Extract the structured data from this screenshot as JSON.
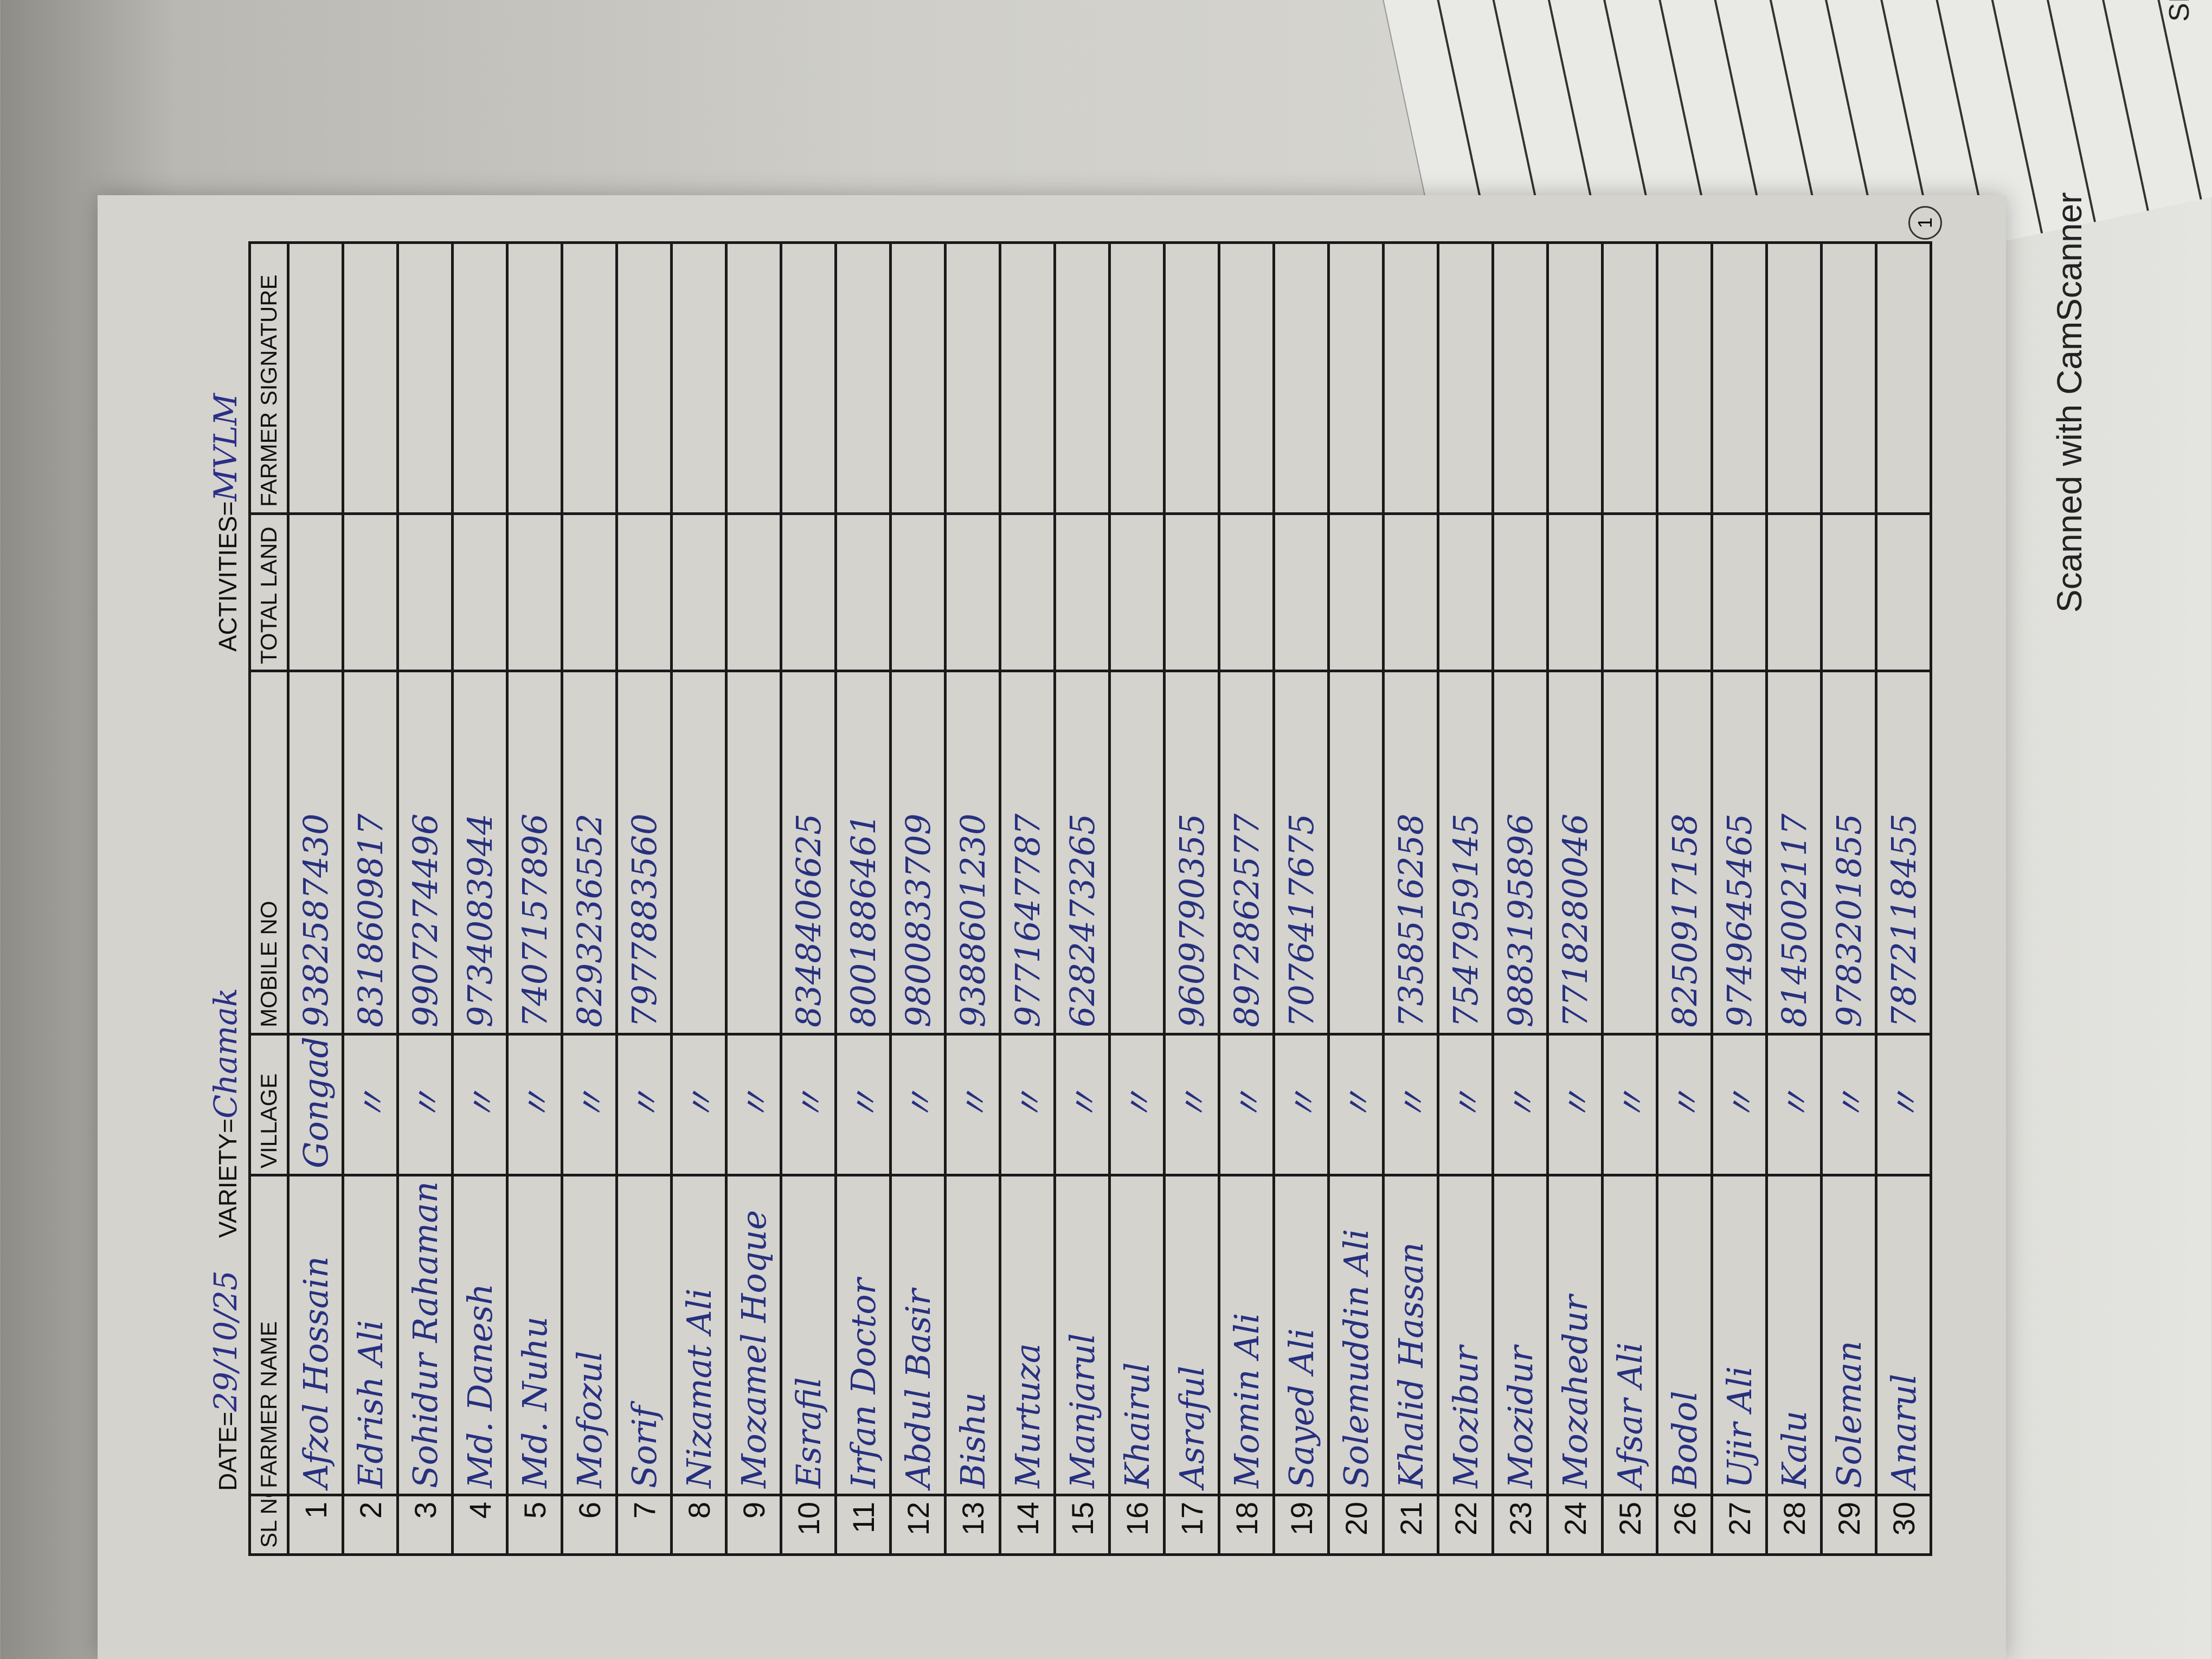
{
  "back_sheet": {
    "label": "SIGNATURE"
  },
  "page_number": "1",
  "header": {
    "date_label": "DATE=",
    "date_value": "29/10/25",
    "variety_label": "VARIETY=",
    "variety_value": "Chamak",
    "activities_label": "ACTIVITIES=",
    "activities_value": "MVLM"
  },
  "table": {
    "columns": [
      "SL NO",
      "FARMER NAME",
      "VILLAGE",
      "MOBILE NO",
      "TOTAL LAND",
      "FARMER SIGNATURE"
    ],
    "rows": [
      {
        "sl": "1",
        "name": "Afzol Hossain",
        "village": "Gongadehi",
        "mobile": "9382587430"
      },
      {
        "sl": "2",
        "name": "Edrish Ali",
        "village": "〃",
        "mobile": "8318609817"
      },
      {
        "sl": "3",
        "name": "Sohidur Rahaman",
        "village": "〃",
        "mobile": "9907274496"
      },
      {
        "sl": "4",
        "name": "Md. Danesh",
        "village": "〃",
        "mobile": "9734083944"
      },
      {
        "sl": "5",
        "name": "Md. Nuhu",
        "village": "〃",
        "mobile": "7407157896"
      },
      {
        "sl": "6",
        "name": "Mofozul",
        "village": "〃",
        "mobile": "8293236552"
      },
      {
        "sl": "7",
        "name": "Sorif",
        "village": "〃",
        "mobile": "7977883560"
      },
      {
        "sl": "8",
        "name": "Nizamat Ali",
        "village": "〃",
        "mobile": ""
      },
      {
        "sl": "9",
        "name": "Mozamel Hoque",
        "village": "〃",
        "mobile": ""
      },
      {
        "sl": "10",
        "name": "Esrafil",
        "village": "〃",
        "mobile": "8348406625"
      },
      {
        "sl": "11",
        "name": "Irfan Doctor",
        "village": "〃",
        "mobile": "8001886461"
      },
      {
        "sl": "12",
        "name": "Abdul Basir",
        "village": "〃",
        "mobile": "9800833709"
      },
      {
        "sl": "13",
        "name": "Bishu",
        "village": "〃",
        "mobile": "9388601230"
      },
      {
        "sl": "14",
        "name": "Murtuza",
        "village": "〃",
        "mobile": "9771647787"
      },
      {
        "sl": "15",
        "name": "Manjarul",
        "village": "〃",
        "mobile": "6282473265"
      },
      {
        "sl": "16",
        "name": "Khairul",
        "village": "〃",
        "mobile": ""
      },
      {
        "sl": "17",
        "name": "Asraful",
        "village": "〃",
        "mobile": "9609790355"
      },
      {
        "sl": "18",
        "name": "Momin Ali",
        "village": "〃",
        "mobile": "8972862577"
      },
      {
        "sl": "19",
        "name": "Sayed Ali",
        "village": "〃",
        "mobile": "7076417675"
      },
      {
        "sl": "20",
        "name": "Solemuddin Ali",
        "village": "〃",
        "mobile": ""
      },
      {
        "sl": "21",
        "name": "Khalid Hassan",
        "village": "〃",
        "mobile": "7358516258"
      },
      {
        "sl": "22",
        "name": "Mozibur",
        "village": "〃",
        "mobile": "7547959145"
      },
      {
        "sl": "23",
        "name": "Mozidur",
        "village": "〃",
        "mobile": "9883195896"
      },
      {
        "sl": "24",
        "name": "Mozahedur",
        "village": "〃",
        "mobile": "7718280046"
      },
      {
        "sl": "25",
        "name": "Afsar Ali",
        "village": "〃",
        "mobile": ""
      },
      {
        "sl": "26",
        "name": "Bodol",
        "village": "〃",
        "mobile": "8250917158"
      },
      {
        "sl": "27",
        "name": "Ujir Ali",
        "village": "〃",
        "mobile": "9749645465"
      },
      {
        "sl": "28",
        "name": "Kalu",
        "village": "〃",
        "mobile": "8145002117"
      },
      {
        "sl": "29",
        "name": "Soleman",
        "village": "〃",
        "mobile": "9783201855"
      },
      {
        "sl": "30",
        "name": "Anarul",
        "village": "〃",
        "mobile": "7872118455"
      }
    ]
  },
  "watermark": "Scanned with CamScanner",
  "colors": {
    "ink": "#27307e",
    "paper": "#d4d3ce",
    "rule": "#1a1a1a"
  }
}
